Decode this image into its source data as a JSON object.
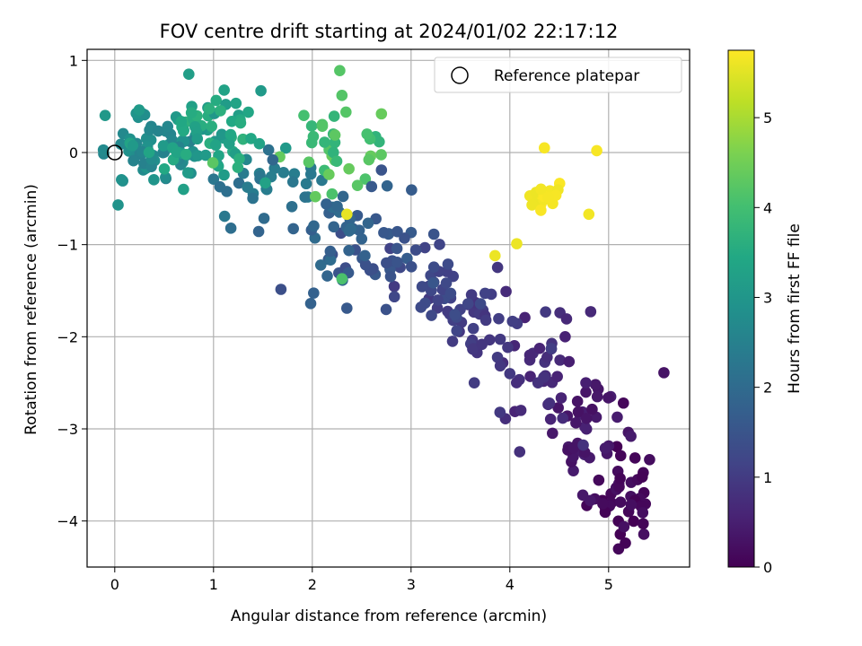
{
  "chart_data": {
    "type": "scatter",
    "title": "FOV centre drift starting at 2024/01/02 22:17:12",
    "xlabel": "Angular distance from reference (arcmin)",
    "ylabel": "Rotation from reference (arcmin)",
    "xlim": [
      -0.28,
      5.82
    ],
    "ylim": [
      -4.5,
      1.12
    ],
    "xticks": [
      0,
      1,
      2,
      3,
      4,
      5
    ],
    "yticks": [
      1,
      0,
      -1,
      -2,
      -3,
      -4
    ],
    "grid": true,
    "legend": {
      "position": "top-right",
      "entries": [
        "Reference platepar"
      ]
    },
    "reference_point": {
      "x": 0,
      "y": 0
    },
    "colorbar": {
      "label": "Hours from first FF file",
      "range": [
        0,
        5.75
      ],
      "ticks": [
        0,
        1,
        2,
        3,
        4,
        5
      ],
      "colormap": "viridis"
    },
    "seed_groups": [
      {
        "cx": 5.15,
        "cy": -3.7,
        "sx": 0.18,
        "sy": 0.25,
        "n": 40,
        "h0": 0.0,
        "h1": 0.25
      },
      {
        "cx": 4.75,
        "cy": -3.1,
        "sx": 0.18,
        "sy": 0.3,
        "n": 38,
        "h0": 0.25,
        "h1": 0.55
      },
      {
        "cx": 4.3,
        "cy": -2.4,
        "sx": 0.22,
        "sy": 0.35,
        "n": 35,
        "h0": 0.55,
        "h1": 0.85
      },
      {
        "cx": 3.7,
        "cy": -1.8,
        "sx": 0.25,
        "sy": 0.3,
        "n": 35,
        "h0": 0.85,
        "h1": 1.1
      },
      {
        "cx": 3.3,
        "cy": -1.45,
        "sx": 0.2,
        "sy": 0.2,
        "n": 30,
        "h0": 1.1,
        "h1": 1.35
      },
      {
        "cx": 2.7,
        "cy": -1.1,
        "sx": 0.3,
        "sy": 0.25,
        "n": 35,
        "h0": 1.35,
        "h1": 1.7
      },
      {
        "cx": 2.1,
        "cy": -0.85,
        "sx": 0.3,
        "sy": 0.3,
        "n": 30,
        "h0": 1.7,
        "h1": 2.05
      },
      {
        "cx": 1.4,
        "cy": -0.4,
        "sx": 0.3,
        "sy": 0.25,
        "n": 30,
        "h0": 2.05,
        "h1": 2.5
      },
      {
        "cx": 0.35,
        "cy": 0.0,
        "sx": 0.3,
        "sy": 0.2,
        "n": 60,
        "h0": 2.5,
        "h1": 3.0
      },
      {
        "cx": 0.9,
        "cy": 0.2,
        "sx": 0.35,
        "sy": 0.2,
        "n": 70,
        "h0": 3.0,
        "h1": 3.7
      },
      {
        "cx": 2.2,
        "cy": 0.1,
        "sx": 0.3,
        "sy": 0.25,
        "n": 35,
        "h0": 3.7,
        "h1": 4.4
      },
      {
        "cx": 4.3,
        "cy": -0.45,
        "sx": 0.08,
        "sy": 0.1,
        "n": 22,
        "h0": 5.6,
        "h1": 5.75
      }
    ],
    "extra_points": [
      {
        "x": 0.75,
        "y": 0.85,
        "h": 3.2
      },
      {
        "x": 1.48,
        "y": 0.67,
        "h": 3.1
      },
      {
        "x": 2.3,
        "y": 0.62,
        "h": 4.2
      },
      {
        "x": 2.7,
        "y": 0.42,
        "h": 4.4
      },
      {
        "x": 4.35,
        "y": 0.05,
        "h": 5.7
      },
      {
        "x": 4.88,
        "y": 0.02,
        "h": 5.7
      },
      {
        "x": 4.8,
        "y": -0.67,
        "h": 5.65
      },
      {
        "x": 4.07,
        "y": -0.99,
        "h": 5.6
      },
      {
        "x": 3.85,
        "y": -1.12,
        "h": 5.6
      },
      {
        "x": 2.35,
        "y": -0.67,
        "h": 5.55
      },
      {
        "x": 2.3,
        "y": -1.37,
        "h": 4.1
      },
      {
        "x": 2.2,
        "y": -0.45,
        "h": 4.1
      },
      {
        "x": 5.56,
        "y": -2.39,
        "h": 0.3
      },
      {
        "x": 5.15,
        "y": -2.72,
        "h": 0.1
      },
      {
        "x": 5.17,
        "y": -4.24,
        "h": 0.05
      },
      {
        "x": 5.35,
        "y": -4.03,
        "h": 0.05
      },
      {
        "x": 4.0,
        "y": -2.4,
        "h": 0.95
      },
      {
        "x": 3.64,
        "y": -2.5,
        "h": 1.0
      },
      {
        "x": 3.9,
        "y": -2.82,
        "h": 0.95
      },
      {
        "x": 4.56,
        "y": -2.0,
        "h": 0.55
      },
      {
        "x": 2.7,
        "y": -0.19,
        "h": 1.5
      },
      {
        "x": 1.6,
        "y": -0.08,
        "h": 1.9
      },
      {
        "x": 2.6,
        "y": -0.37,
        "h": 1.6
      },
      {
        "x": 2.35,
        "y": -1.69,
        "h": 1.6
      },
      {
        "x": 3.1,
        "y": -1.68,
        "h": 1.3
      },
      {
        "x": 3.42,
        "y": -2.05,
        "h": 1.0
      },
      {
        "x": 4.77,
        "y": -2.5,
        "h": 0.5
      },
      {
        "x": 4.6,
        "y": -2.27,
        "h": 0.5
      }
    ]
  }
}
